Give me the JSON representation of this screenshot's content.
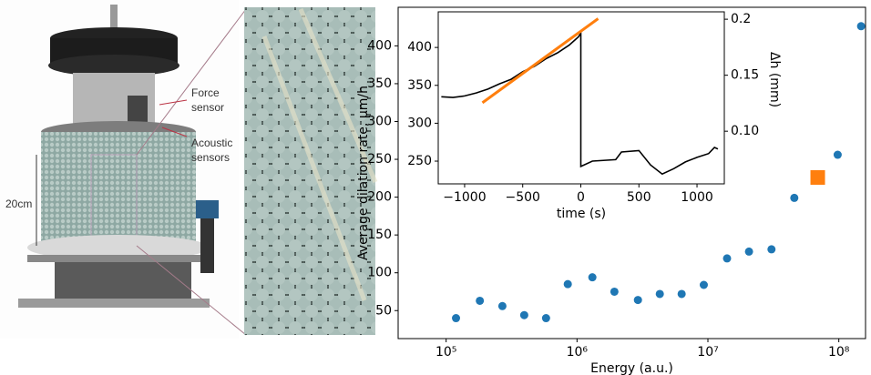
{
  "photo": {
    "force_sensor": [
      "Force",
      "sensor"
    ],
    "acoustic_sensors": [
      "Acoustic",
      "sensors"
    ],
    "scale": "20cm"
  },
  "chart_data": [
    {
      "type": "scatter",
      "xlabel": "Energy (a.u.)",
      "ylabel": "Average dilation rate, μm/h",
      "xscale": "log",
      "xlim": [
        43000,
        160000000
      ],
      "ylim": [
        13,
        451
      ],
      "xticks": [
        {
          "value": 100000,
          "label": "10⁵"
        },
        {
          "value": 1000000,
          "label": "10⁶"
        },
        {
          "value": 10000000,
          "label": "10⁷"
        },
        {
          "value": 100000000,
          "label": "10⁸"
        }
      ],
      "yticks": [
        50,
        100,
        150,
        200,
        250,
        300,
        350,
        400
      ],
      "series": [
        {
          "color": "#1f77b4",
          "marker": "circle",
          "x": [
            119000,
            181000,
            269000,
            395000,
            580000,
            850000,
            1310000,
            1930000,
            2920000,
            4290000,
            6300000,
            9300000,
            14000000,
            20600000,
            30600000,
            45700000,
            98000000,
            148000000
          ],
          "values": [
            40,
            63,
            56,
            44,
            40,
            85,
            94,
            75,
            64,
            72,
            72,
            84,
            119,
            128,
            131,
            199,
            256,
            426
          ]
        },
        {
          "color": "#ff7f0e",
          "marker": "square",
          "x": [
            69000000
          ],
          "values": [
            226
          ]
        }
      ]
    },
    {
      "type": "line",
      "xlabel": "time (s)",
      "y2label": "Δh (mm)",
      "xlim": [
        -1227,
        1235
      ],
      "ylim": [
        220,
        447
      ],
      "y2lim": [
        0.053,
        0.2066
      ],
      "xticks": [
        {
          "value": -1000,
          "label": "−1000"
        },
        {
          "value": -500,
          "label": "−500"
        },
        0,
        500,
        1000
      ],
      "yticks": [
        250,
        300,
        350,
        400
      ],
      "y2ticks": [
        {
          "value": 0.1,
          "label": "0.10"
        },
        0.15,
        0.2
      ],
      "series": [
        {
          "color": "#000000",
          "x": [
            -1200,
            -1100,
            -1000,
            -900,
            -800,
            -700,
            -600,
            -500,
            -400,
            -300,
            -200,
            -100,
            -20,
            0,
            0,
            100,
            300,
            350,
            500,
            600,
            700,
            800,
            900,
            1000,
            1100,
            1150,
            1180
          ],
          "values": [
            335,
            334,
            336,
            340,
            345,
            352,
            358,
            368,
            375,
            385,
            393,
            403,
            414,
            419,
            243,
            250,
            252,
            262,
            264,
            245,
            233,
            240,
            249,
            255,
            260,
            268,
            266
          ]
        },
        {
          "color": "#ff7f0e",
          "x": [
            -847,
            149
          ],
          "values": [
            327,
            438
          ]
        }
      ]
    }
  ]
}
